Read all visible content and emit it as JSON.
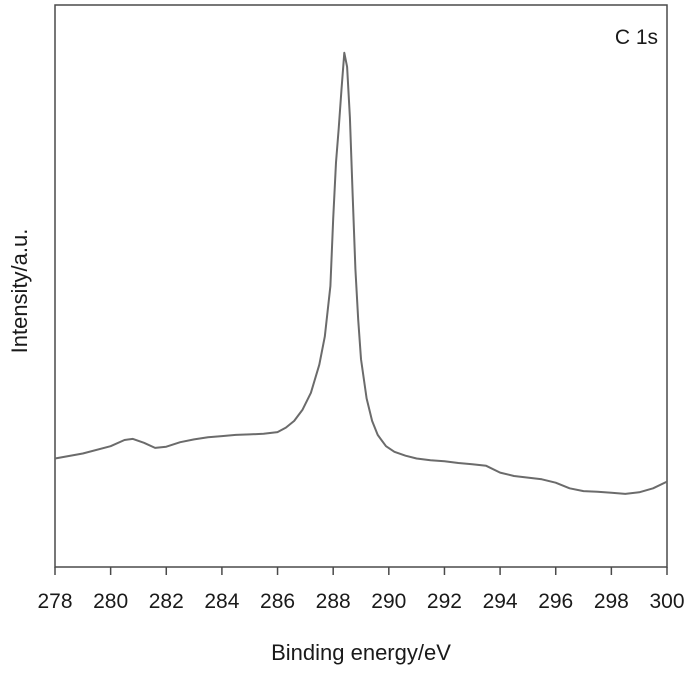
{
  "chart_data": {
    "type": "line",
    "title": "",
    "annotation": "C 1s",
    "xlabel": "Binding energy/eV",
    "ylabel": "Intensity/a.u.",
    "xlim": [
      278,
      300
    ],
    "ylim": [
      0,
      100
    ],
    "xticks": [
      "278",
      "280",
      "282",
      "284",
      "286",
      "288",
      "290",
      "292",
      "294",
      "296",
      "298",
      "300"
    ],
    "show_y_ticks": false,
    "grid": false,
    "line_color": "#6b6b6b",
    "series": [
      {
        "x": [
          278.0,
          279.0,
          280.0,
          280.5,
          280.8,
          281.2,
          281.6,
          282.0,
          282.5,
          283.0,
          283.5,
          284.0,
          284.5,
          285.0,
          285.5,
          286.0,
          286.3,
          286.6,
          286.9,
          287.2,
          287.5,
          287.7,
          287.9,
          288.0,
          288.1,
          288.2,
          288.3,
          288.4,
          288.5,
          288.6,
          288.7,
          288.8,
          288.9,
          289.0,
          289.2,
          289.4,
          289.6,
          289.9,
          290.2,
          290.6,
          291.0,
          291.5,
          292.0,
          292.5,
          293.0,
          293.5,
          294.0,
          294.5,
          295.0,
          295.5,
          296.0,
          296.5,
          297.0,
          297.5,
          298.0,
          298.5,
          299.0,
          299.5,
          300.0
        ],
        "y": [
          19.3,
          20.2,
          21.5,
          22.6,
          22.8,
          22.1,
          21.2,
          21.4,
          22.2,
          22.7,
          23.1,
          23.3,
          23.5,
          23.6,
          23.7,
          24.0,
          24.8,
          26.0,
          28.0,
          31.0,
          36.0,
          41.0,
          50.0,
          62.0,
          72.0,
          78.0,
          85.0,
          91.5,
          89.0,
          80.0,
          66.0,
          53.0,
          44.0,
          37.0,
          30.0,
          26.0,
          23.5,
          21.5,
          20.5,
          19.8,
          19.3,
          19.0,
          18.8,
          18.5,
          18.3,
          18.0,
          16.8,
          16.2,
          15.9,
          15.6,
          15.0,
          14.0,
          13.5,
          13.4,
          13.2,
          13.0,
          13.3,
          14.0,
          15.2
        ]
      }
    ]
  }
}
